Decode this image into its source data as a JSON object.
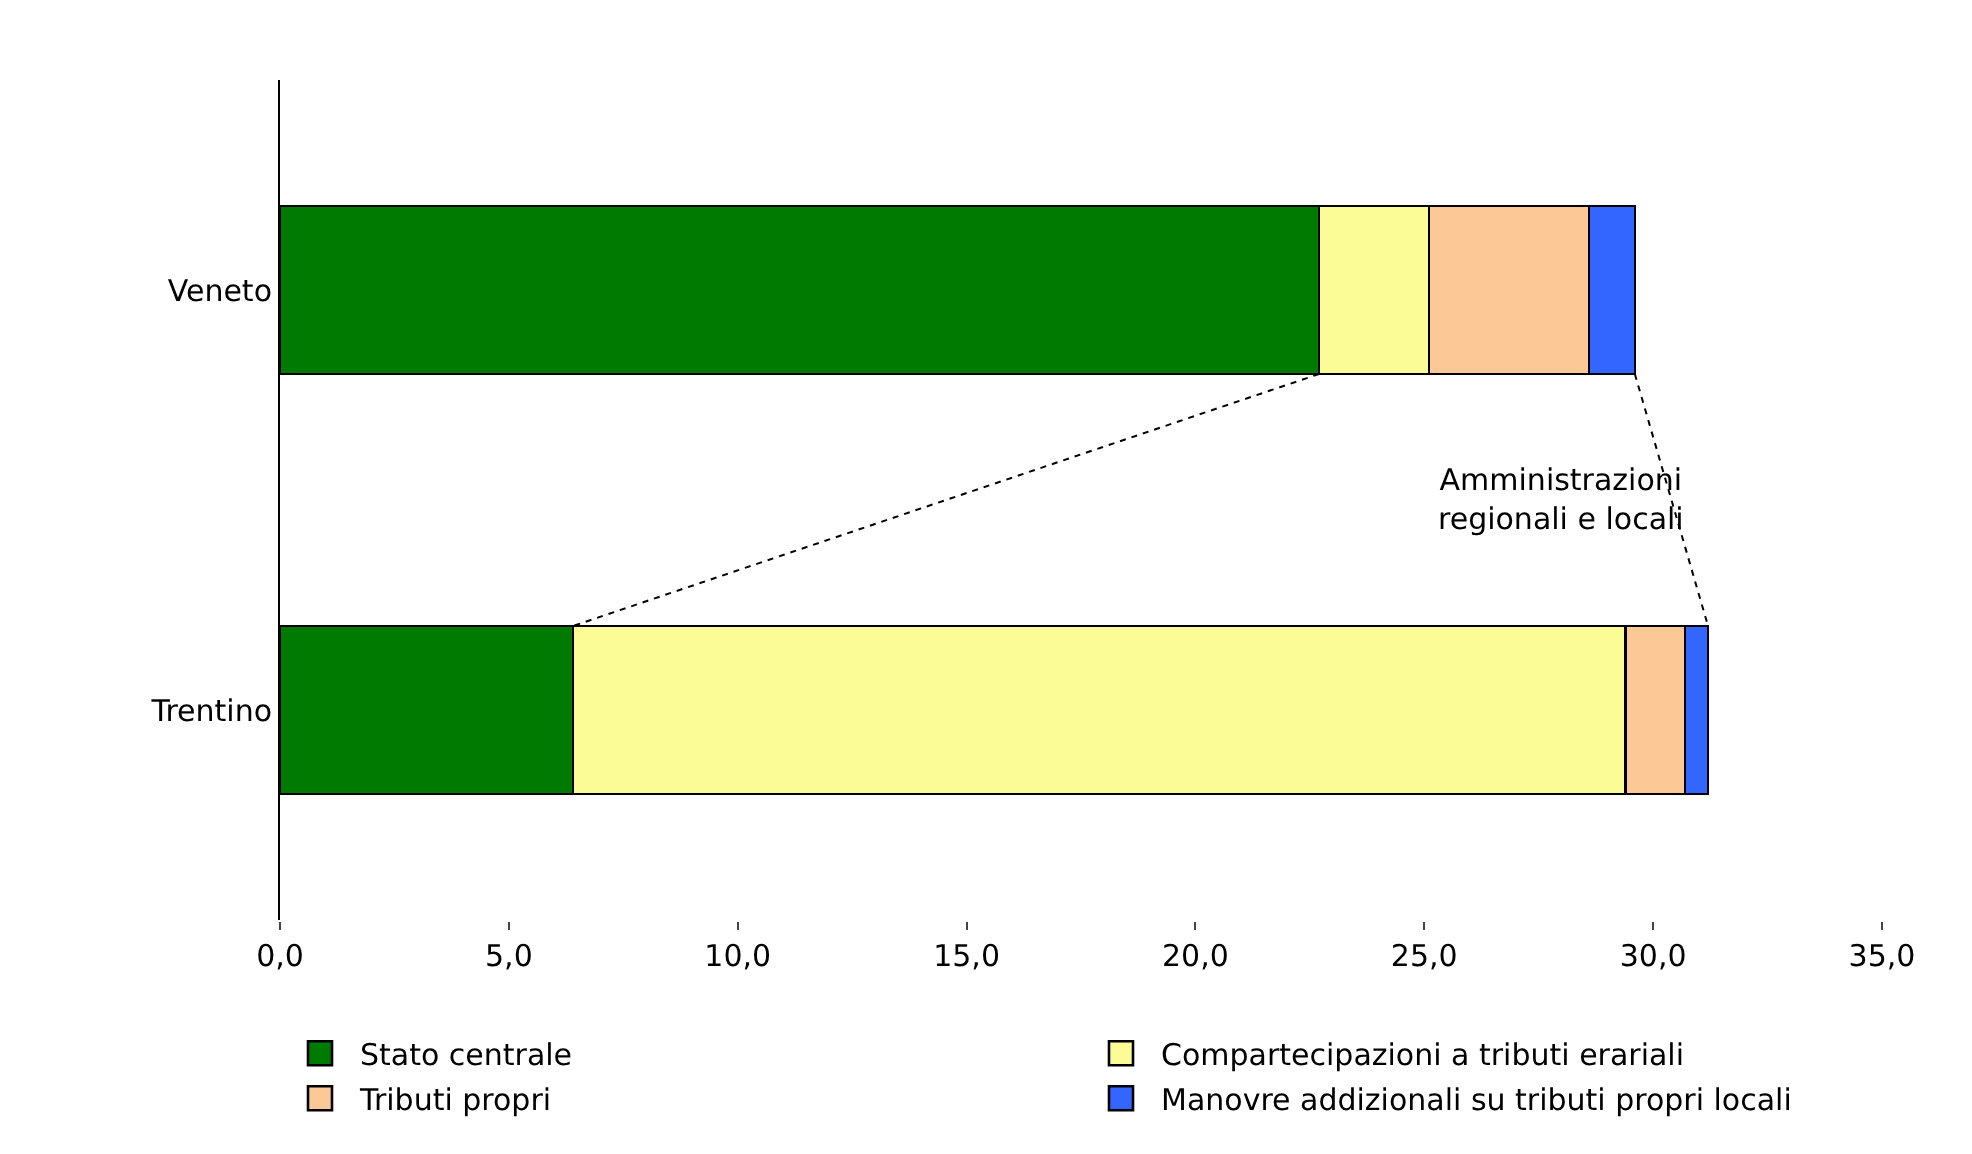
{
  "chart_data": {
    "type": "bar",
    "orientation": "horizontal",
    "stacked": true,
    "categories": [
      "Veneto",
      "Trentino"
    ],
    "series": [
      {
        "name": "Stato centrale",
        "color": "#007a00",
        "values": [
          22.7,
          6.4
        ]
      },
      {
        "name": "Compartecipazioni a tributi erariali",
        "color": "#fcfc96",
        "values": [
          2.4,
          23.0
        ]
      },
      {
        "name": "Tributi propri",
        "color": "#fcc896",
        "values": [
          3.5,
          1.3
        ]
      },
      {
        "name": "Manovre addizionali su tributi propri locali",
        "color": "#3366ff",
        "values": [
          1.0,
          0.5
        ]
      }
    ],
    "xlim": [
      0,
      35
    ],
    "xticks": [
      {
        "value": 0,
        "label": "0,0"
      },
      {
        "value": 5,
        "label": "5,0"
      },
      {
        "value": 10,
        "label": "10,0"
      },
      {
        "value": 15,
        "label": "15,0"
      },
      {
        "value": 20,
        "label": "20,0"
      },
      {
        "value": 25,
        "label": "25,0"
      },
      {
        "value": 30,
        "label": "30,0"
      },
      {
        "value": 35,
        "label": "35,0"
      }
    ],
    "annotations": [
      "Amministrazioni regionali e locali"
    ],
    "legend": "bottom"
  }
}
